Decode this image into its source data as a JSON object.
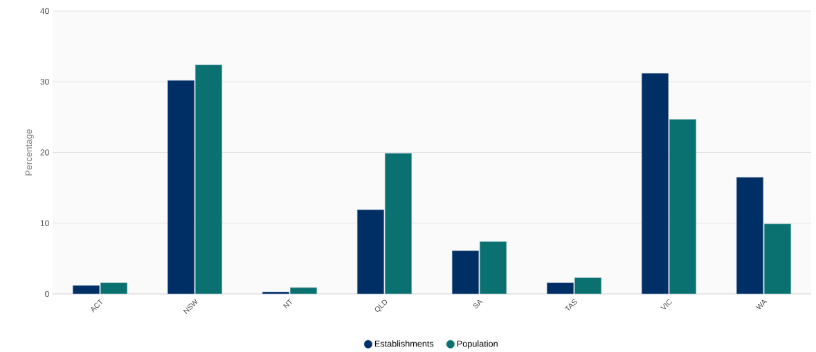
{
  "chart_data": {
    "type": "bar",
    "ylabel": "Percentage",
    "categories": [
      "ACT",
      "NSW",
      "NT",
      "QLD",
      "SA",
      "TAS",
      "VIC",
      "WA"
    ],
    "series": [
      {
        "name": "Establishments",
        "color": "#002f66",
        "values": [
          1.2,
          30.2,
          0.3,
          11.9,
          6.1,
          1.6,
          31.2,
          16.5
        ]
      },
      {
        "name": "Population",
        "color": "#0b7170",
        "values": [
          1.6,
          32.4,
          0.9,
          19.9,
          7.4,
          2.3,
          24.7,
          9.9
        ]
      }
    ],
    "ylim": [
      0,
      40
    ],
    "yticks": [
      0,
      10,
      20,
      30,
      40
    ],
    "grid": "y",
    "legend": "bottom"
  }
}
